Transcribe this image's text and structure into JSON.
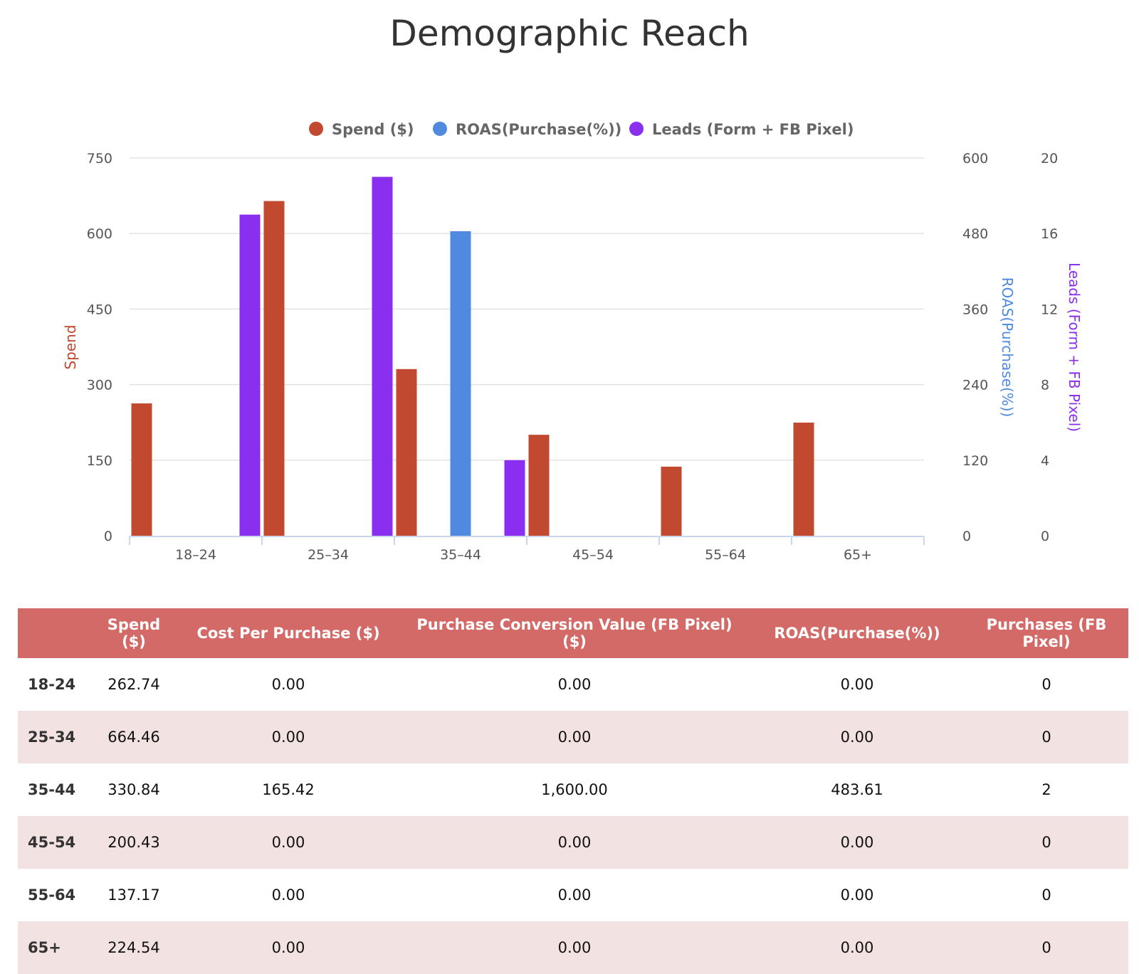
{
  "chart_data": {
    "type": "bar",
    "title": "Demographic Reach",
    "categories": [
      "18-24",
      "25-34",
      "35-44",
      "45-54",
      "55-64",
      "65+"
    ],
    "series": [
      {
        "name": "Spend ($)",
        "axis": "left",
        "color": "#c0492f",
        "values": [
          262.74,
          664.46,
          330.84,
          200.43,
          137.17,
          224.54
        ]
      },
      {
        "name": "ROAS(Purchase(%))",
        "axis": "right1",
        "color": "#5089e0",
        "values": [
          0,
          0,
          483.61,
          0,
          0,
          0
        ]
      },
      {
        "name": "Leads (Form + FB Pixel)",
        "axis": "right2",
        "color": "#8a2ff0",
        "values": [
          17,
          0,
          0,
          0,
          0,
          0
        ],
        "values_full": [
          17,
          19,
          4,
          0,
          0,
          0
        ]
      }
    ],
    "axes": {
      "left": {
        "label": "Spend",
        "color": "#c0492f",
        "ylim": [
          0,
          750
        ],
        "ticks": [
          "0",
          "150",
          "300",
          "450",
          "600",
          "750"
        ]
      },
      "right1": {
        "label": "ROAS(Purchase(%))",
        "color": "#5089e0",
        "ylim": [
          0,
          600
        ],
        "ticks": [
          "0",
          "120",
          "240",
          "360",
          "480",
          "600"
        ]
      },
      "right2": {
        "label": "Leads (Form + FB Pixel)",
        "color": "#8a2ff0",
        "ylim": [
          0,
          20
        ],
        "ticks": [
          "0",
          "4",
          "8",
          "12",
          "16",
          "20"
        ]
      }
    },
    "x_tick_labels": [
      "18–24",
      "25–34",
      "35–44",
      "45–54",
      "55–64",
      "65+"
    ],
    "grid": true,
    "legend": "top-center"
  },
  "table": {
    "headers": [
      "",
      "Spend ($)",
      "Cost Per Purchase ($)",
      "Purchase Conversion Value (FB Pixel) ($)",
      "ROAS(Purchase(%))",
      "Purchases (FB Pixel)"
    ],
    "rows": [
      [
        "18-24",
        "262.74",
        "0.00",
        "0.00",
        "0.00",
        "0"
      ],
      [
        "25-34",
        "664.46",
        "0.00",
        "0.00",
        "0.00",
        "0"
      ],
      [
        "35-44",
        "330.84",
        "165.42",
        "1,600.00",
        "483.61",
        "2"
      ],
      [
        "45-54",
        "200.43",
        "0.00",
        "0.00",
        "0.00",
        "0"
      ],
      [
        "55-64",
        "137.17",
        "0.00",
        "0.00",
        "0.00",
        "0"
      ],
      [
        "65+",
        "224.54",
        "0.00",
        "0.00",
        "0.00",
        "0"
      ]
    ]
  }
}
